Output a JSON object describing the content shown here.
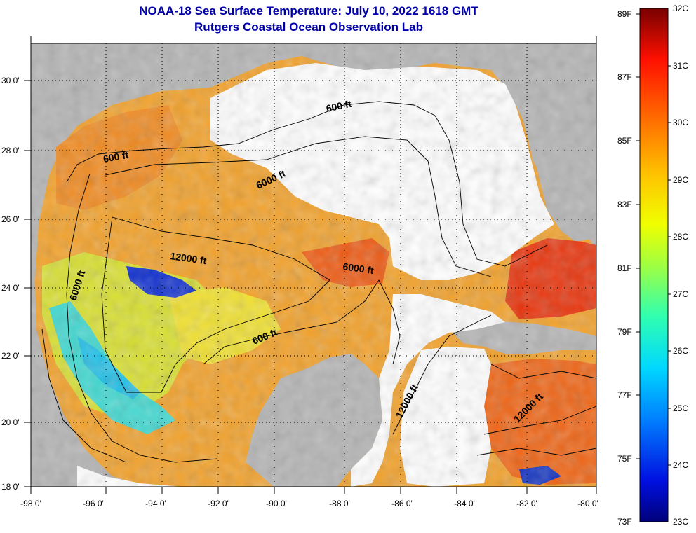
{
  "title": {
    "line1": "NOAA-18 Sea Surface Temperature:  July 10, 2022 1618 GMT",
    "line2": "Rutgers Coastal Ocean Observation Lab"
  },
  "axes": {
    "lat_labels": [
      "30 0'",
      "28 0'",
      "26 0'",
      "24 0'",
      "22 0'",
      "20 0'",
      "18 0'"
    ],
    "lon_labels": [
      "-98 0'",
      "-96 0'",
      "-94 0'",
      "-92 0'",
      "-90 0'",
      "-88 0'",
      "-86 0'",
      "-84 0'",
      "-82 0'",
      "-80 0'"
    ]
  },
  "contours": {
    "labels": [
      "600 ft",
      "6000 ft",
      "600 ft",
      "12000 ft",
      "6000 ft",
      "6000 ft",
      "600 ft",
      "12000 ft",
      "12000 ft"
    ]
  },
  "colorbar": {
    "fahrenheit": [
      "89F",
      "87F",
      "85F",
      "83F",
      "81F",
      "79F",
      "77F",
      "75F",
      "73F"
    ],
    "celsius": [
      "32C",
      "31C",
      "30C",
      "29C",
      "28C",
      "27C",
      "26C",
      "25C",
      "24C",
      "23C"
    ]
  },
  "colors": {
    "title": "#0000aa",
    "land": "#b4b4b4",
    "cloud": "#ffffff"
  }
}
